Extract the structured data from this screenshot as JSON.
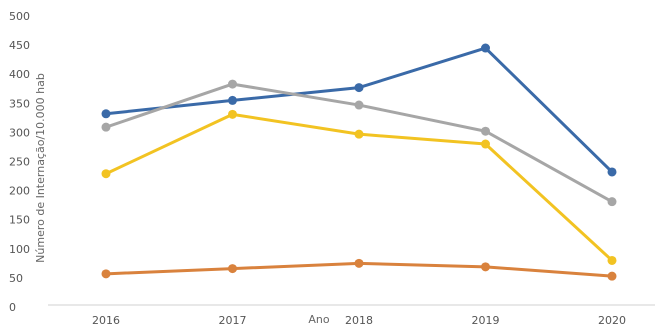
{
  "chart_data": {
    "type": "line",
    "xlabel": "Ano",
    "ylabel": "Número de Internação/10.000 hab",
    "categories": [
      "2016",
      "2017",
      "2018",
      "2019",
      "2020"
    ],
    "ylim": [
      0,
      500
    ],
    "yticks": [
      "0",
      "50",
      "100",
      "150",
      "200",
      "250",
      "300",
      "350",
      "400",
      "450",
      "500"
    ],
    "grid": false,
    "legend": "none",
    "series": [
      {
        "color": "#3A6AA8",
        "values": [
          332,
          355,
          377,
          445,
          232
        ]
      },
      {
        "color": "#A6A6A6",
        "values": [
          309,
          383,
          347,
          302,
          181
        ]
      },
      {
        "color": "#F2C322",
        "values": [
          229,
          331,
          297,
          280,
          80
        ]
      },
      {
        "color": "#D9823D",
        "values": [
          57,
          66,
          75,
          69,
          53
        ]
      }
    ]
  }
}
